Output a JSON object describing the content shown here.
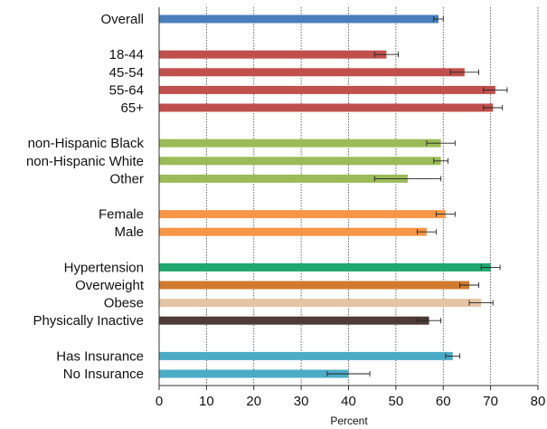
{
  "chart_data": {
    "type": "bar",
    "orientation": "horizontal",
    "xlabel": "Percent",
    "xlim": [
      0,
      80
    ],
    "xticks": [
      0,
      10,
      20,
      30,
      40,
      50,
      60,
      70,
      80
    ],
    "grid": "vertical dotted",
    "groups": [
      {
        "bars": [
          {
            "label": "Overall",
            "value": 59,
            "err": [
              58,
              60
            ],
            "color": "#4a7ebb"
          }
        ]
      },
      {
        "bars": [
          {
            "label": "18-44",
            "value": 48,
            "err": [
              45.5,
              50.5
            ],
            "color": "#c0504d"
          },
          {
            "label": "45-54",
            "value": 64.5,
            "err": [
              61.5,
              67.5
            ],
            "color": "#c0504d"
          },
          {
            "label": "55-64",
            "value": 71,
            "err": [
              68.5,
              73.5
            ],
            "color": "#c0504d"
          },
          {
            "label": "65+",
            "value": 70.5,
            "err": [
              68.5,
              72.5
            ],
            "color": "#c0504d"
          }
        ]
      },
      {
        "bars": [
          {
            "label": "non-Hispanic Black",
            "value": 59.5,
            "err": [
              56.5,
              62.5
            ],
            "color": "#9bbb59"
          },
          {
            "label": "non-Hispanic White",
            "value": 59.5,
            "err": [
              58,
              61
            ],
            "color": "#9bbb59"
          },
          {
            "label": "Other",
            "value": 52.5,
            "err": [
              45.5,
              59.5
            ],
            "color": "#9bbb59"
          }
        ]
      },
      {
        "bars": [
          {
            "label": "Female",
            "value": 60.5,
            "err": [
              58.5,
              62.5
            ],
            "color": "#f79646"
          },
          {
            "label": "Male",
            "value": 56.5,
            "err": [
              54.5,
              58.5
            ],
            "color": "#f79646"
          }
        ]
      },
      {
        "bars": [
          {
            "label": "Hypertension",
            "value": 70,
            "err": [
              68,
              72
            ],
            "color": "#1fa76e"
          },
          {
            "label": "Overweight",
            "value": 65.5,
            "err": [
              63.5,
              67.5
            ],
            "color": "#d07b30"
          },
          {
            "label": "Obese",
            "value": 68,
            "err": [
              65.5,
              70.5
            ],
            "color": "#e3c4a4"
          },
          {
            "label": "Physically Inactive",
            "value": 57,
            "err": [
              54.5,
              59.5
            ],
            "color": "#4e3b35"
          }
        ]
      },
      {
        "bars": [
          {
            "label": "Has Insurance",
            "value": 62,
            "err": [
              60.5,
              63.5
            ],
            "color": "#4bacc6"
          },
          {
            "label": "No Insurance",
            "value": 40,
            "err": [
              35.5,
              44.5
            ],
            "color": "#4bacc6"
          }
        ]
      }
    ]
  }
}
